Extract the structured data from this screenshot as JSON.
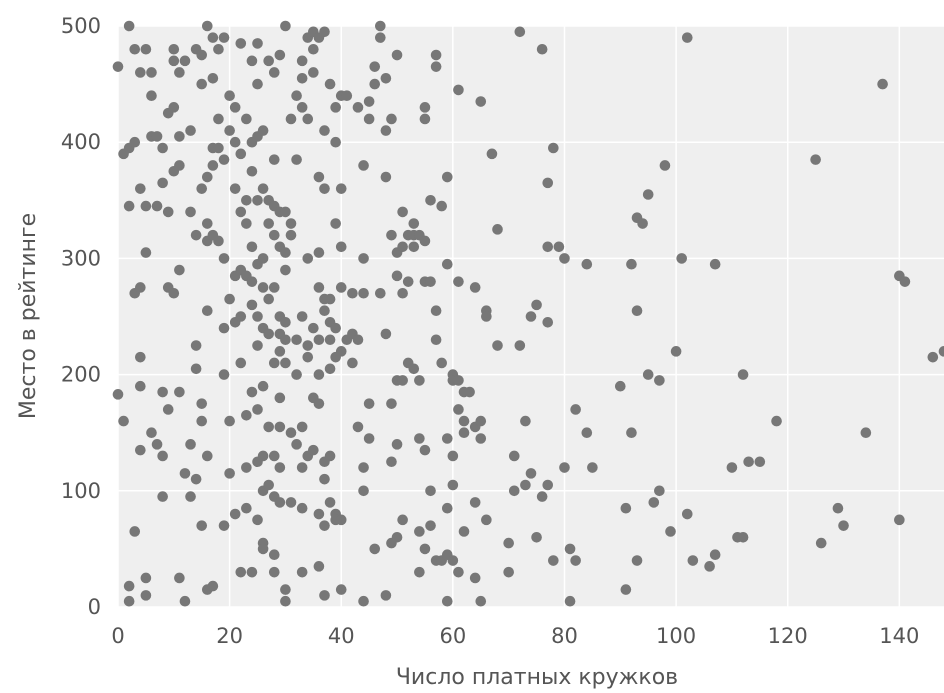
{
  "chart_data": {
    "type": "scatter",
    "title": "",
    "xlabel": "Число платных кружков",
    "ylabel": "Место в рейтинге",
    "xlim": [
      0,
      148
    ],
    "ylim": [
      0,
      500
    ],
    "xticks": [
      0,
      20,
      40,
      60,
      80,
      100,
      120,
      140
    ],
    "yticks": [
      0,
      100,
      200,
      300,
      400,
      500
    ],
    "grid": true,
    "colors": {
      "background": "#efefef",
      "grid": "#ffffff",
      "point": "#777777",
      "text": "#555555"
    },
    "points": [
      [
        0,
        183
      ],
      [
        0,
        465
      ],
      [
        1,
        160
      ],
      [
        1,
        390
      ],
      [
        2,
        500
      ],
      [
        2,
        395
      ],
      [
        2,
        345
      ],
      [
        2,
        18
      ],
      [
        2,
        5
      ],
      [
        3,
        480
      ],
      [
        3,
        400
      ],
      [
        3,
        270
      ],
      [
        3,
        65
      ],
      [
        4,
        460
      ],
      [
        4,
        360
      ],
      [
        4,
        275
      ],
      [
        4,
        215
      ],
      [
        4,
        190
      ],
      [
        4,
        135
      ],
      [
        5,
        480
      ],
      [
        5,
        345
      ],
      [
        5,
        305
      ],
      [
        5,
        25
      ],
      [
        5,
        10
      ],
      [
        6,
        460
      ],
      [
        6,
        440
      ],
      [
        6,
        405
      ],
      [
        6,
        150
      ],
      [
        7,
        405
      ],
      [
        7,
        345
      ],
      [
        7,
        140
      ],
      [
        8,
        395
      ],
      [
        8,
        365
      ],
      [
        8,
        185
      ],
      [
        8,
        130
      ],
      [
        8,
        95
      ],
      [
        9,
        425
      ],
      [
        9,
        340
      ],
      [
        9,
        275
      ],
      [
        9,
        170
      ],
      [
        10,
        480
      ],
      [
        10,
        470
      ],
      [
        10,
        430
      ],
      [
        10,
        375
      ],
      [
        10,
        270
      ],
      [
        11,
        460
      ],
      [
        11,
        405
      ],
      [
        11,
        380
      ],
      [
        11,
        290
      ],
      [
        11,
        185
      ],
      [
        11,
        25
      ],
      [
        12,
        470
      ],
      [
        12,
        115
      ],
      [
        12,
        5
      ],
      [
        13,
        410
      ],
      [
        13,
        340
      ],
      [
        13,
        140
      ],
      [
        13,
        95
      ],
      [
        14,
        480
      ],
      [
        14,
        320
      ],
      [
        14,
        225
      ],
      [
        14,
        205
      ],
      [
        14,
        110
      ],
      [
        15,
        475
      ],
      [
        15,
        450
      ],
      [
        15,
        360
      ],
      [
        15,
        175
      ],
      [
        15,
        160
      ],
      [
        15,
        70
      ],
      [
        16,
        500
      ],
      [
        16,
        370
      ],
      [
        16,
        330
      ],
      [
        16,
        315
      ],
      [
        16,
        255
      ],
      [
        16,
        130
      ],
      [
        16,
        15
      ],
      [
        17,
        490
      ],
      [
        17,
        455
      ],
      [
        17,
        395
      ],
      [
        17,
        380
      ],
      [
        17,
        320
      ],
      [
        17,
        18
      ],
      [
        18,
        480
      ],
      [
        18,
        420
      ],
      [
        18,
        395
      ],
      [
        18,
        315
      ],
      [
        19,
        490
      ],
      [
        19,
        385
      ],
      [
        19,
        300
      ],
      [
        19,
        240
      ],
      [
        19,
        200
      ],
      [
        19,
        70
      ],
      [
        20,
        440
      ],
      [
        20,
        410
      ],
      [
        20,
        265
      ],
      [
        20,
        160
      ],
      [
        20,
        115
      ],
      [
        21,
        430
      ],
      [
        21,
        400
      ],
      [
        21,
        360
      ],
      [
        21,
        285
      ],
      [
        21,
        245
      ],
      [
        21,
        80
      ],
      [
        22,
        485
      ],
      [
        22,
        390
      ],
      [
        22,
        340
      ],
      [
        22,
        290
      ],
      [
        22,
        250
      ],
      [
        22,
        210
      ],
      [
        22,
        30
      ],
      [
        23,
        420
      ],
      [
        23,
        350
      ],
      [
        23,
        330
      ],
      [
        23,
        285
      ],
      [
        23,
        165
      ],
      [
        23,
        120
      ],
      [
        23,
        85
      ],
      [
        24,
        470
      ],
      [
        24,
        400
      ],
      [
        24,
        375
      ],
      [
        24,
        310
      ],
      [
        24,
        280
      ],
      [
        24,
        260
      ],
      [
        24,
        185
      ],
      [
        24,
        30
      ],
      [
        25,
        485
      ],
      [
        25,
        450
      ],
      [
        25,
        405
      ],
      [
        25,
        350
      ],
      [
        25,
        295
      ],
      [
        25,
        250
      ],
      [
        25,
        225
      ],
      [
        25,
        170
      ],
      [
        25,
        125
      ],
      [
        25,
        75
      ],
      [
        26,
        410
      ],
      [
        26,
        360
      ],
      [
        26,
        300
      ],
      [
        26,
        275
      ],
      [
        26,
        240
      ],
      [
        26,
        190
      ],
      [
        26,
        130
      ],
      [
        26,
        100
      ],
      [
        26,
        55
      ],
      [
        26,
        50
      ],
      [
        27,
        470
      ],
      [
        27,
        350
      ],
      [
        27,
        330
      ],
      [
        27,
        265
      ],
      [
        27,
        235
      ],
      [
        27,
        155
      ],
      [
        27,
        105
      ],
      [
        28,
        460
      ],
      [
        28,
        385
      ],
      [
        28,
        345
      ],
      [
        28,
        320
      ],
      [
        28,
        275
      ],
      [
        28,
        210
      ],
      [
        28,
        130
      ],
      [
        28,
        95
      ],
      [
        28,
        45
      ],
      [
        28,
        30
      ],
      [
        29,
        475
      ],
      [
        29,
        340
      ],
      [
        29,
        310
      ],
      [
        29,
        250
      ],
      [
        29,
        235
      ],
      [
        29,
        220
      ],
      [
        29,
        180
      ],
      [
        29,
        155
      ],
      [
        29,
        120
      ],
      [
        29,
        90
      ],
      [
        30,
        500
      ],
      [
        30,
        340
      ],
      [
        30,
        305
      ],
      [
        30,
        290
      ],
      [
        30,
        245
      ],
      [
        30,
        230
      ],
      [
        30,
        210
      ],
      [
        30,
        15
      ],
      [
        30,
        5
      ],
      [
        31,
        420
      ],
      [
        31,
        330
      ],
      [
        31,
        320
      ],
      [
        31,
        150
      ],
      [
        31,
        90
      ],
      [
        32,
        440
      ],
      [
        32,
        385
      ],
      [
        32,
        230
      ],
      [
        32,
        200
      ],
      [
        32,
        140
      ],
      [
        33,
        470
      ],
      [
        33,
        455
      ],
      [
        33,
        430
      ],
      [
        33,
        250
      ],
      [
        33,
        155
      ],
      [
        33,
        120
      ],
      [
        33,
        85
      ],
      [
        33,
        30
      ],
      [
        34,
        490
      ],
      [
        34,
        420
      ],
      [
        34,
        300
      ],
      [
        34,
        225
      ],
      [
        34,
        215
      ],
      [
        34,
        130
      ],
      [
        35,
        495
      ],
      [
        35,
        480
      ],
      [
        35,
        460
      ],
      [
        35,
        240
      ],
      [
        35,
        180
      ],
      [
        35,
        135
      ],
      [
        36,
        490
      ],
      [
        36,
        370
      ],
      [
        36,
        305
      ],
      [
        36,
        275
      ],
      [
        36,
        230
      ],
      [
        36,
        200
      ],
      [
        36,
        175
      ],
      [
        36,
        80
      ],
      [
        36,
        35
      ],
      [
        37,
        495
      ],
      [
        37,
        410
      ],
      [
        37,
        360
      ],
      [
        37,
        265
      ],
      [
        37,
        255
      ],
      [
        37,
        125
      ],
      [
        37,
        110
      ],
      [
        37,
        70
      ],
      [
        37,
        10
      ],
      [
        38,
        450
      ],
      [
        38,
        265
      ],
      [
        38,
        245
      ],
      [
        38,
        230
      ],
      [
        38,
        205
      ],
      [
        38,
        130
      ],
      [
        38,
        90
      ],
      [
        39,
        430
      ],
      [
        39,
        400
      ],
      [
        39,
        330
      ],
      [
        39,
        240
      ],
      [
        39,
        215
      ],
      [
        39,
        80
      ],
      [
        39,
        75
      ],
      [
        40,
        440
      ],
      [
        40,
        360
      ],
      [
        40,
        310
      ],
      [
        40,
        275
      ],
      [
        40,
        220
      ],
      [
        40,
        75
      ],
      [
        40,
        15
      ],
      [
        41,
        440
      ],
      [
        41,
        230
      ],
      [
        42,
        270
      ],
      [
        42,
        235
      ],
      [
        42,
        210
      ],
      [
        43,
        430
      ],
      [
        43,
        230
      ],
      [
        43,
        155
      ],
      [
        44,
        380
      ],
      [
        44,
        300
      ],
      [
        44,
        270
      ],
      [
        44,
        120
      ],
      [
        44,
        100
      ],
      [
        44,
        5
      ],
      [
        45,
        420
      ],
      [
        45,
        435
      ],
      [
        45,
        175
      ],
      [
        45,
        145
      ],
      [
        46,
        450
      ],
      [
        46,
        465
      ],
      [
        46,
        50
      ],
      [
        47,
        500
      ],
      [
        47,
        490
      ],
      [
        47,
        270
      ],
      [
        48,
        455
      ],
      [
        48,
        410
      ],
      [
        48,
        370
      ],
      [
        48,
        235
      ],
      [
        48,
        10
      ],
      [
        49,
        420
      ],
      [
        49,
        320
      ],
      [
        49,
        175
      ],
      [
        49,
        125
      ],
      [
        49,
        55
      ],
      [
        50,
        475
      ],
      [
        50,
        305
      ],
      [
        50,
        285
      ],
      [
        50,
        195
      ],
      [
        50,
        140
      ],
      [
        50,
        60
      ],
      [
        51,
        340
      ],
      [
        51,
        310
      ],
      [
        51,
        270
      ],
      [
        51,
        195
      ],
      [
        51,
        75
      ],
      [
        52,
        320
      ],
      [
        52,
        280
      ],
      [
        52,
        210
      ],
      [
        53,
        330
      ],
      [
        53,
        320
      ],
      [
        53,
        310
      ],
      [
        53,
        205
      ],
      [
        54,
        320
      ],
      [
        54,
        195
      ],
      [
        54,
        145
      ],
      [
        54,
        65
      ],
      [
        54,
        30
      ],
      [
        55,
        430
      ],
      [
        55,
        420
      ],
      [
        55,
        315
      ],
      [
        55,
        280
      ],
      [
        55,
        135
      ],
      [
        55,
        50
      ],
      [
        56,
        350
      ],
      [
        56,
        280
      ],
      [
        56,
        100
      ],
      [
        56,
        70
      ],
      [
        57,
        475
      ],
      [
        57,
        465
      ],
      [
        57,
        255
      ],
      [
        57,
        230
      ],
      [
        57,
        40
      ],
      [
        58,
        345
      ],
      [
        58,
        210
      ],
      [
        58,
        40
      ],
      [
        59,
        370
      ],
      [
        59,
        295
      ],
      [
        59,
        145
      ],
      [
        59,
        85
      ],
      [
        59,
        45
      ],
      [
        59,
        5
      ],
      [
        60,
        200
      ],
      [
        60,
        195
      ],
      [
        60,
        130
      ],
      [
        60,
        105
      ],
      [
        60,
        40
      ],
      [
        61,
        445
      ],
      [
        61,
        280
      ],
      [
        61,
        195
      ],
      [
        61,
        170
      ],
      [
        61,
        30
      ],
      [
        62,
        185
      ],
      [
        62,
        160
      ],
      [
        62,
        150
      ],
      [
        62,
        65
      ],
      [
        63,
        185
      ],
      [
        64,
        275
      ],
      [
        64,
        155
      ],
      [
        64,
        90
      ],
      [
        64,
        25
      ],
      [
        65,
        435
      ],
      [
        65,
        160
      ],
      [
        65,
        145
      ],
      [
        65,
        5
      ],
      [
        66,
        255
      ],
      [
        66,
        250
      ],
      [
        66,
        75
      ],
      [
        67,
        390
      ],
      [
        68,
        325
      ],
      [
        68,
        225
      ],
      [
        70,
        30
      ],
      [
        70,
        55
      ],
      [
        71,
        130
      ],
      [
        71,
        100
      ],
      [
        72,
        495
      ],
      [
        72,
        225
      ],
      [
        73,
        160
      ],
      [
        73,
        105
      ],
      [
        74,
        250
      ],
      [
        74,
        115
      ],
      [
        75,
        260
      ],
      [
        75,
        60
      ],
      [
        76,
        480
      ],
      [
        76,
        95
      ],
      [
        77,
        365
      ],
      [
        77,
        310
      ],
      [
        77,
        245
      ],
      [
        77,
        105
      ],
      [
        78,
        395
      ],
      [
        78,
        40
      ],
      [
        79,
        310
      ],
      [
        80,
        300
      ],
      [
        80,
        120
      ],
      [
        81,
        50
      ],
      [
        81,
        5
      ],
      [
        82,
        170
      ],
      [
        82,
        40
      ],
      [
        84,
        295
      ],
      [
        84,
        150
      ],
      [
        85,
        120
      ],
      [
        90,
        190
      ],
      [
        91,
        15
      ],
      [
        91,
        85
      ],
      [
        92,
        295
      ],
      [
        92,
        150
      ],
      [
        93,
        335
      ],
      [
        93,
        255
      ],
      [
        93,
        40
      ],
      [
        94,
        330
      ],
      [
        95,
        355
      ],
      [
        95,
        200
      ],
      [
        96,
        90
      ],
      [
        97,
        195
      ],
      [
        97,
        100
      ],
      [
        98,
        380
      ],
      [
        99,
        65
      ],
      [
        100,
        220
      ],
      [
        101,
        300
      ],
      [
        102,
        80
      ],
      [
        102,
        490
      ],
      [
        103,
        40
      ],
      [
        106,
        35
      ],
      [
        107,
        45
      ],
      [
        107,
        295
      ],
      [
        110,
        120
      ],
      [
        111,
        60
      ],
      [
        112,
        200
      ],
      [
        112,
        60
      ],
      [
        113,
        125
      ],
      [
        115,
        125
      ],
      [
        118,
        160
      ],
      [
        125,
        385
      ],
      [
        126,
        55
      ],
      [
        129,
        85
      ],
      [
        130,
        70
      ],
      [
        134,
        150
      ],
      [
        137,
        450
      ],
      [
        140,
        285
      ],
      [
        140,
        75
      ],
      [
        141,
        280
      ],
      [
        146,
        215
      ],
      [
        148,
        220
      ]
    ]
  }
}
